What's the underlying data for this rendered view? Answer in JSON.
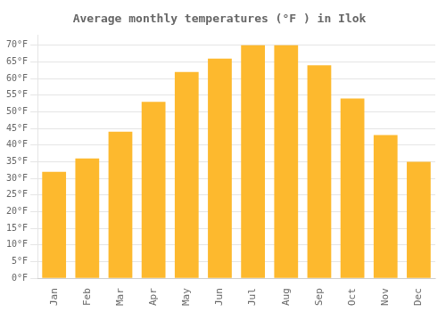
{
  "chart_data": {
    "type": "bar",
    "title": "Average monthly temperatures (°F ) in Ilok",
    "categories": [
      "Jan",
      "Feb",
      "Mar",
      "Apr",
      "May",
      "Jun",
      "Jul",
      "Aug",
      "Sep",
      "Oct",
      "Nov",
      "Dec"
    ],
    "values": [
      32,
      36,
      44,
      53,
      62,
      66,
      70,
      70,
      64,
      54,
      43,
      35
    ],
    "color": "#FDB92E",
    "ylim": [
      0,
      73
    ],
    "yticks": [
      {
        "value": 0,
        "label": "0°F"
      },
      {
        "value": 5,
        "label": "5°F"
      },
      {
        "value": 10,
        "label": "10°F"
      },
      {
        "value": 15,
        "label": "15°F"
      },
      {
        "value": 20,
        "label": "20°F"
      },
      {
        "value": 25,
        "label": "25°F"
      },
      {
        "value": 30,
        "label": "30°F"
      },
      {
        "value": 35,
        "label": "35°F"
      },
      {
        "value": 40,
        "label": "40°F"
      },
      {
        "value": 45,
        "label": "45°F"
      },
      {
        "value": 50,
        "label": "50°F"
      },
      {
        "value": 55,
        "label": "55°F"
      },
      {
        "value": 60,
        "label": "60°F"
      },
      {
        "value": 65,
        "label": "65°F"
      },
      {
        "value": 70,
        "label": "70°F"
      }
    ],
    "grid": true
  }
}
